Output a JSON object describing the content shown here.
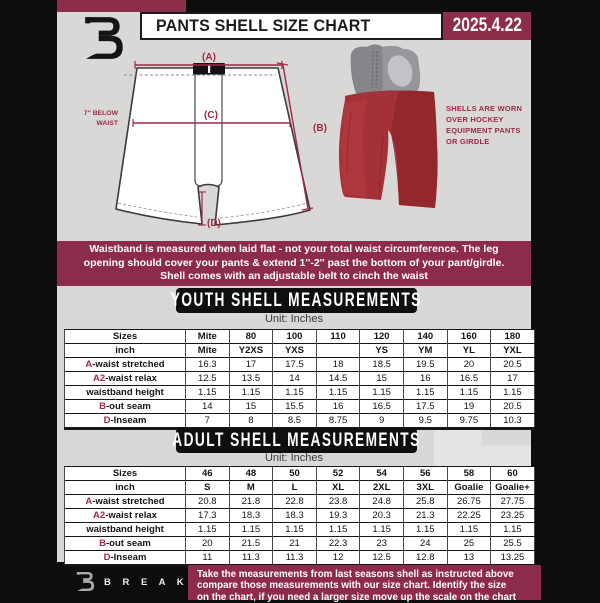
{
  "header": {
    "title": "PANTS SHELL SIZE CHART",
    "date": "2025.4.22"
  },
  "diagram": {
    "label_a": "(A)",
    "label_b": "(B)",
    "label_c": "(C)",
    "label_d": "(D)",
    "below_waist_l1": "7'' BELOW",
    "below_waist_l2": "WAIST",
    "shell_note_l1": "SHELLS ARE WORN",
    "shell_note_l2": "OVER HOCKEY",
    "shell_note_l3": "EQUIPMENT PANTS",
    "shell_note_l4": "OR GIRDLE"
  },
  "banner": {
    "l1": "Waistband is measured when laid flat - not your total waist circumference. The leg",
    "l2": "opening should cover your pants & extend 1''-2'' past the bottom of your pant/girdle.",
    "l3": "Shell comes with an adjustable belt to cinch the waist"
  },
  "youth": {
    "heading": "YOUTH SHELL MEASUREMENTS",
    "unit": "Unit: Inches",
    "rows": [
      {
        "prefix": "",
        "label": "Sizes",
        "header": true,
        "values": [
          "Mite",
          "80",
          "100",
          "110",
          "120",
          "140",
          "160",
          "180"
        ]
      },
      {
        "prefix": "",
        "label": "inch",
        "header": true,
        "values": [
          "Mite",
          "Y2XS",
          "YXS",
          "",
          "YS",
          "YM",
          "YL",
          "YXL"
        ]
      },
      {
        "prefix": "A",
        "label": "-waist stretched",
        "header": false,
        "values": [
          "16.3",
          "17",
          "17.5",
          "18",
          "18.5",
          "19.5",
          "20",
          "20.5"
        ]
      },
      {
        "prefix": "A2",
        "label": "-waist relax",
        "header": false,
        "values": [
          "12.5",
          "13.5",
          "14",
          "14.5",
          "15",
          "16",
          "16.5",
          "17"
        ]
      },
      {
        "prefix": "",
        "label": "waistband height",
        "header": false,
        "values": [
          "1.15",
          "1.15",
          "1.15",
          "1.15",
          "1.15",
          "1.15",
          "1.15",
          "1.15"
        ]
      },
      {
        "prefix": "B",
        "label": "-out seam",
        "header": false,
        "values": [
          "14",
          "15",
          "15.5",
          "16",
          "16.5",
          "17.5",
          "19",
          "20.5"
        ]
      },
      {
        "prefix": "D",
        "label": "-Inseam",
        "header": false,
        "values": [
          "7",
          "8",
          "8.5",
          "8.75",
          "9",
          "9.5",
          "9.75",
          "10.3"
        ]
      }
    ]
  },
  "adult": {
    "heading": "ADULT SHELL MEASUREMENTS",
    "unit": "Unit: Inches",
    "rows": [
      {
        "prefix": "",
        "label": "Sizes",
        "header": true,
        "values": [
          "46",
          "48",
          "50",
          "52",
          "54",
          "56",
          "58",
          "60"
        ]
      },
      {
        "prefix": "",
        "label": "inch",
        "header": true,
        "values": [
          "S",
          "M",
          "L",
          "XL",
          "2XL",
          "3XL",
          "Goalie",
          "Goalie+"
        ]
      },
      {
        "prefix": "A",
        "label": "-waist stretched",
        "header": false,
        "values": [
          "20.8",
          "21.8",
          "22.8",
          "23.8",
          "24.8",
          "25.8",
          "26.75",
          "27.75"
        ]
      },
      {
        "prefix": "A2",
        "label": "-waist relax",
        "header": false,
        "values": [
          "17.3",
          "18.3",
          "18.3",
          "19.3",
          "20.3",
          "21.3",
          "22.25",
          "23.25"
        ]
      },
      {
        "prefix": "",
        "label": "waistband height",
        "header": false,
        "values": [
          "1.15",
          "1.15",
          "1.15",
          "1.15",
          "1.15",
          "1.15",
          "1.15",
          "1.15"
        ]
      },
      {
        "prefix": "B",
        "label": "-out seam",
        "header": false,
        "values": [
          "20",
          "21.5",
          "21",
          "22.3",
          "23",
          "24",
          "25",
          "25.5"
        ]
      },
      {
        "prefix": "D",
        "label": "-Inseam",
        "header": false,
        "values": [
          "11",
          "11.3",
          "11.3",
          "12",
          "12.5",
          "12.8",
          "13",
          "13.25"
        ]
      }
    ]
  },
  "footer": {
    "brand": "B R E A K A W A Y",
    "l1": "Take the measurements from last seasons shell as instructed above",
    "l2": "compare those measurements  with our size chart. Identify the size",
    "l3": "on the chart, if you need a larger size move up the scale on the chart"
  },
  "colors": {
    "maroon": "#8d2c4a",
    "accent_red": "#a32944",
    "shell_red": "#a53138",
    "panel_gray": "#d9d8d7"
  }
}
